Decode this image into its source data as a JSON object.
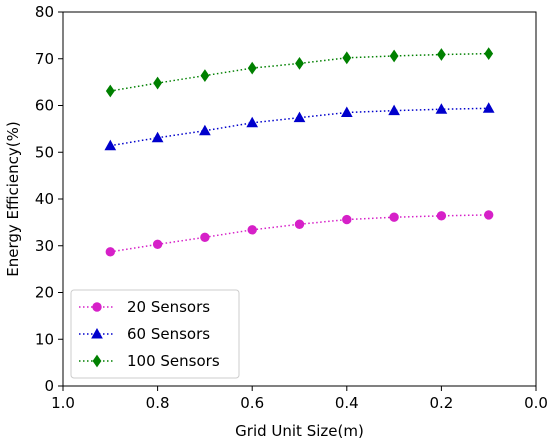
{
  "chart_data": {
    "type": "line",
    "xlabel": "Grid Unit Size(m)",
    "ylabel": "Energy Efficiency(%)",
    "xlim": [
      1.0,
      0.0
    ],
    "ylim": [
      0,
      80
    ],
    "x_reversed": true,
    "xticks": [
      "1.0",
      "0.8",
      "0.6",
      "0.4",
      "0.2",
      "0.0"
    ],
    "xtick_values": [
      1.0,
      0.8,
      0.6,
      0.4,
      0.2,
      0.0
    ],
    "yticks": [
      "0",
      "10",
      "20",
      "30",
      "40",
      "50",
      "60",
      "70",
      "80"
    ],
    "ytick_values": [
      0,
      10,
      20,
      30,
      40,
      50,
      60,
      70,
      80
    ],
    "grid": false,
    "legend_position": "bottom-left",
    "x": [
      0.9,
      0.8,
      0.7,
      0.6,
      0.5,
      0.4,
      0.3,
      0.2,
      0.1
    ],
    "series": [
      {
        "name": "20 Sensors",
        "color": "#d620c8",
        "marker": "circle",
        "values": [
          28.7,
          30.3,
          31.8,
          33.4,
          34.6,
          35.6,
          36.1,
          36.4,
          36.6
        ]
      },
      {
        "name": "60 Sensors",
        "color": "#0000cc",
        "marker": "triangle",
        "values": [
          51.4,
          53.1,
          54.6,
          56.3,
          57.4,
          58.5,
          58.9,
          59.2,
          59.4
        ]
      },
      {
        "name": "100 Sensors",
        "color": "#008000",
        "marker": "diamond",
        "values": [
          63.1,
          64.8,
          66.4,
          68.0,
          69.0,
          70.2,
          70.6,
          70.9,
          71.1
        ]
      }
    ]
  }
}
